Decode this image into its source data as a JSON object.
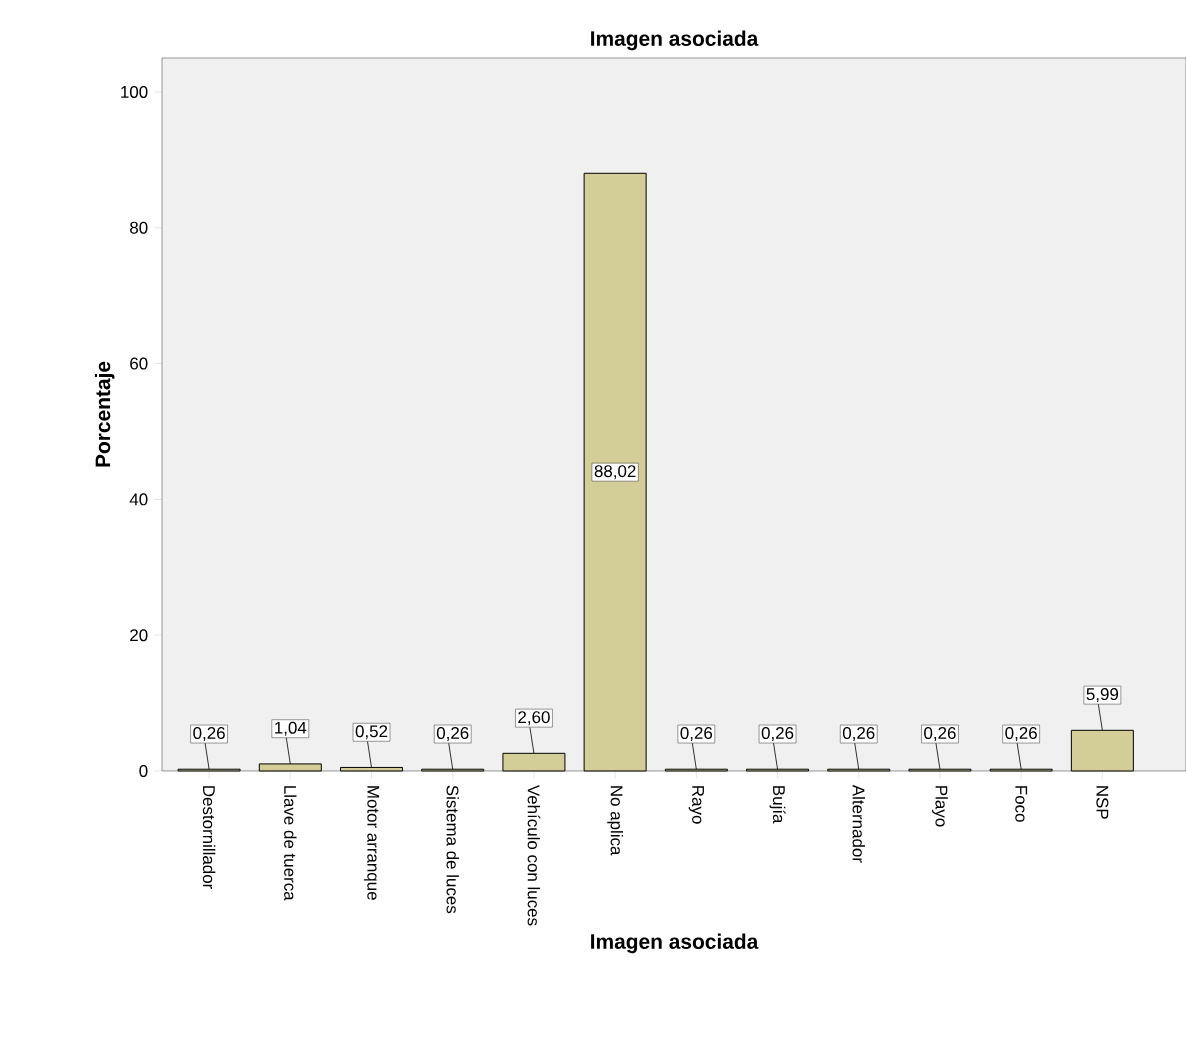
{
  "chart_data": {
    "type": "bar",
    "title": "Imagen asociada",
    "xlabel": "Imagen asociada",
    "ylabel": "Porcentaje",
    "categories": [
      "Destornillador",
      "Llave de tuerca",
      "Motor arranque",
      "Sistema de luces",
      "Vehículo con luces",
      "No aplica",
      "Rayo",
      "Bujía",
      "Alternador",
      "Playo",
      "Foco",
      "NSP"
    ],
    "values": [
      0.26,
      1.04,
      0.52,
      0.26,
      2.6,
      88.02,
      0.26,
      0.26,
      0.26,
      0.26,
      0.26,
      5.99
    ],
    "value_labels": [
      "0,26",
      "1,04",
      "0,52",
      "0,26",
      "2,60",
      "88,02",
      "0,26",
      "0,26",
      "0,26",
      "0,26",
      "0,26",
      "5,99"
    ],
    "color": "#d3ce97",
    "ylim": [
      0,
      105
    ],
    "yticks": [
      0,
      20,
      40,
      60,
      80,
      100
    ],
    "grid": false
  }
}
